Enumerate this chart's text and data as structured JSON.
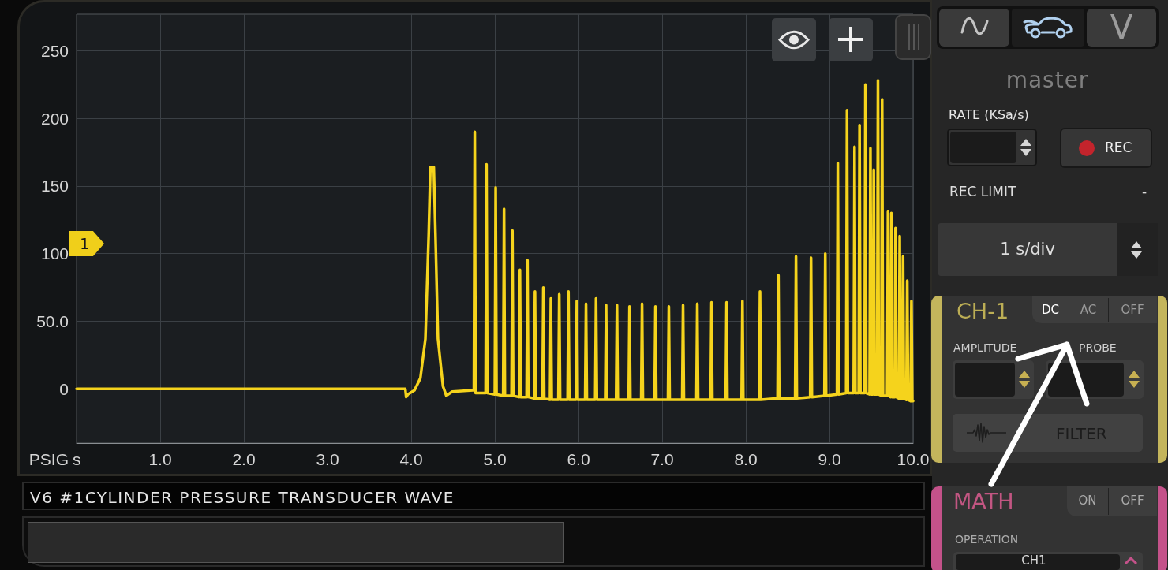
{
  "chart_data": {
    "type": "line",
    "title": "V6 #1CYLINDER PRESSURE TRANSDUCER WAVE",
    "xlabel": "s",
    "ylabel": "PSIG",
    "annotations": [
      "1",
      "V",
      "master",
      "RATE (KSa/s)",
      "REC",
      "REC LIMIT",
      "-",
      "1 s/div",
      "CH-1",
      "DC",
      "AC",
      "OFF",
      "AMPLITUDE",
      "PROBE",
      "FILTER",
      "MATH",
      "ON",
      "OFF",
      "OPERATION",
      "CH1"
    ],
    "series": [
      {
        "color": "#f5d31c",
        "x": [
          0,
          3.93,
          3.94,
          3.96,
          4.04,
          4.11,
          4.17,
          4.21,
          4.23,
          4.27,
          4.29,
          4.32,
          4.38,
          4.42,
          4.49,
          4.74,
          4.75,
          4.76,
          4.77,
          4.89,
          4.9,
          4.91,
          5,
          5.01,
          5.02,
          5.1,
          5.11,
          5.12,
          5.2,
          5.21,
          5.22,
          5.29,
          5.3,
          5.31,
          5.38,
          5.39,
          5.4,
          5.47,
          5.48,
          5.49,
          5.57,
          5.58,
          5.59,
          5.66,
          5.67,
          5.68,
          5.76,
          5.77,
          5.78,
          5.87,
          5.88,
          5.89,
          5.97,
          5.98,
          5.99,
          6.08,
          6.09,
          6.1,
          6.2,
          6.21,
          6.22,
          6.32,
          6.33,
          6.34,
          6.45,
          6.46,
          6.47,
          6.6,
          6.61,
          6.62,
          6.75,
          6.76,
          6.77,
          6.91,
          6.92,
          6.93,
          7.07,
          7.08,
          7.09,
          7.24,
          7.25,
          7.26,
          7.41,
          7.42,
          7.43,
          7.58,
          7.59,
          7.6,
          7.76,
          7.77,
          7.78,
          7.95,
          7.96,
          7.97,
          8.16,
          8.17,
          8.18,
          8.38,
          8.39,
          8.4,
          8.59,
          8.6,
          8.61,
          8.77,
          8.78,
          8.79,
          8.94,
          8.95,
          8.96,
          9.09,
          9.1,
          9.11,
          9.2,
          9.21,
          9.22,
          9.29,
          9.3,
          9.31,
          9.35,
          9.36,
          9.37,
          9.42,
          9.43,
          9.44,
          9.48,
          9.49,
          9.5,
          9.52,
          9.53,
          9.54,
          9.57,
          9.58,
          9.59,
          9.62,
          9.63,
          9.64,
          9.69,
          9.7,
          9.71,
          9.73,
          9.74,
          9.75,
          9.78,
          9.79,
          9.8,
          9.83,
          9.84,
          9.85,
          9.87,
          9.88,
          9.89,
          9.92,
          9.93,
          9.94,
          9.97,
          9.98,
          9.99,
          10
        ],
        "values": [
          0,
          0,
          -6,
          -4,
          -1,
          8,
          37,
          115,
          164,
          164,
          115,
          37,
          2,
          -5,
          -2,
          -1,
          -1,
          190,
          -3,
          -3,
          166,
          -3,
          -4,
          149,
          -4,
          -5,
          133,
          -5,
          -5,
          117,
          -5,
          -6,
          88,
          -6,
          -6,
          95,
          -6,
          -7,
          72,
          -7,
          -7,
          75,
          -7,
          -8,
          67,
          -8,
          -8,
          70,
          -8,
          -8,
          72,
          -8,
          -8,
          65,
          -8,
          -8,
          63,
          -8,
          -8,
          67,
          -8,
          -8,
          62,
          -8,
          -8,
          62,
          -8,
          -8,
          61,
          -8,
          -8,
          63,
          -8,
          -8,
          61,
          -8,
          -8,
          61,
          -8,
          -8,
          62,
          -8,
          -8,
          63,
          -8,
          -8,
          64,
          -8,
          -8,
          64,
          -8,
          -8,
          65,
          -8,
          -8,
          72,
          -8,
          -7,
          84,
          -7,
          -7,
          98,
          -7,
          -6,
          97,
          -6,
          -5,
          100,
          -5,
          -4,
          167,
          -4,
          -3,
          206,
          -3,
          -3,
          179,
          -3,
          -3,
          195,
          -3,
          -3,
          225,
          -3,
          -4,
          178,
          -4,
          -4,
          162,
          -4,
          -4,
          228,
          -4,
          -5,
          214,
          -5,
          -5,
          131,
          -5,
          -6,
          130,
          -6,
          -6,
          119,
          -6,
          -7,
          113,
          -7,
          -7,
          98,
          -7,
          -8,
          80,
          -8,
          -9,
          65,
          -9,
          -9
        ]
      }
    ],
    "xlim": [
      0,
      10
    ],
    "ylim": [
      -40,
      277
    ],
    "xticks": [
      {
        "value": 1,
        "label": "1.0"
      },
      {
        "value": 2,
        "label": "2.0"
      },
      {
        "value": 3,
        "label": "3.0"
      },
      {
        "value": 4,
        "label": "4.0"
      },
      {
        "value": 5,
        "label": "5.0"
      },
      {
        "value": 6,
        "label": "6.0"
      },
      {
        "value": 7,
        "label": "7.0"
      },
      {
        "value": 8,
        "label": "8.0"
      },
      {
        "value": 9,
        "label": "9.0"
      },
      {
        "value": 10,
        "label": "10.0"
      }
    ],
    "yticks": [
      0,
      {
        "value": 50,
        "label": "50.0"
      },
      100,
      150,
      200,
      250
    ],
    "grid": true,
    "marker": "none",
    "line_style": "solid"
  }
}
